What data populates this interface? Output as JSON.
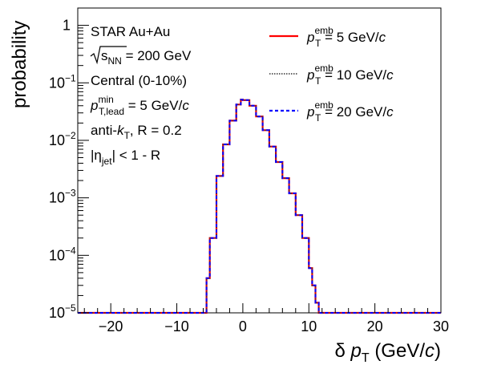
{
  "chart_data": {
    "type": "line",
    "xlabel": {
      "symbol": "δ",
      "var": "p",
      "sub": "T",
      "unit_pre": "(GeV/",
      "unit_it": "c",
      "unit_post": ")"
    },
    "ylabel": "probability",
    "xlim": [
      -25,
      30
    ],
    "ylim": [
      1e-05,
      2
    ],
    "y_scale": "log",
    "grid": false,
    "x_ticks": [
      "−20",
      "−10",
      "0",
      "10",
      "20",
      "30"
    ],
    "y_ticks": [
      {
        "base": "10",
        "exp": "−5"
      },
      {
        "base": "10",
        "exp": "−4"
      },
      {
        "base": "10",
        "exp": "−3"
      },
      {
        "base": "10",
        "exp": "−2"
      },
      {
        "base": "10",
        "exp": "−1"
      },
      {
        "base": "1",
        "exp": ""
      }
    ],
    "annotations": {
      "line1": "STAR Au+Au",
      "line2": {
        "root": "s",
        "sub": "NN",
        "rest": " = 200 GeV"
      },
      "line3": "Central (0-10%)",
      "line4": {
        "p": "p",
        "sup": "min",
        "sub": "T,lead",
        "rest": " = 5 GeV/",
        "it": "c"
      },
      "line5": {
        "pre": "anti-",
        "k": "k",
        "sub": "T",
        "rest": ", R = 0.2"
      },
      "line6": {
        "bar": "|",
        "eta": "η",
        "sub": "jet",
        "rest": "| < 1 - R"
      }
    },
    "legend_position": "top-right",
    "series": [
      {
        "label": {
          "p": "p",
          "sup": "emb",
          "sub": "T",
          "rest": " = 5 GeV/",
          "it": "c"
        },
        "color": "#ff0000",
        "style": "solid",
        "x": [
          -5.5,
          -5,
          -4,
          -3,
          -2,
          -1,
          -0.3,
          0,
          1,
          2,
          3,
          4,
          5,
          6,
          7,
          8,
          9,
          10,
          10.5,
          11
        ],
        "y": [
          4e-05,
          0.0002,
          0.0024,
          0.0085,
          0.022,
          0.042,
          0.051,
          0.05,
          0.04,
          0.026,
          0.015,
          0.0078,
          0.0042,
          0.0022,
          0.0012,
          0.0005,
          0.0002,
          6e-05,
          3e-05,
          1.5e-05
        ]
      },
      {
        "label": {
          "p": "p",
          "sup": "emb",
          "sub": "T",
          "rest": " = 10 GeV/",
          "it": "c"
        },
        "color": "#333333",
        "style": "dotted",
        "x": [
          -5.5,
          -5,
          -4,
          -3,
          -2,
          -1,
          -0.3,
          0,
          1,
          2,
          3,
          4,
          5,
          6,
          7,
          8,
          9,
          10,
          10.5,
          11
        ],
        "y": [
          4e-05,
          0.0002,
          0.0024,
          0.0085,
          0.022,
          0.042,
          0.051,
          0.05,
          0.04,
          0.026,
          0.015,
          0.0078,
          0.0042,
          0.0022,
          0.0012,
          0.0005,
          0.0002,
          6e-05,
          3e-05,
          1.5e-05
        ]
      },
      {
        "label": {
          "p": "p",
          "sup": "emb",
          "sub": "T",
          "rest": " = 20 GeV/",
          "it": "c"
        },
        "color": "#0000ff",
        "style": "dashed",
        "x": [
          -5.5,
          -5,
          -4,
          -3,
          -2,
          -1,
          -0.3,
          0,
          1,
          2,
          3,
          4,
          5,
          6,
          7,
          8,
          9,
          10,
          10.5,
          11
        ],
        "y": [
          4e-05,
          0.0002,
          0.0024,
          0.0085,
          0.022,
          0.042,
          0.051,
          0.05,
          0.04,
          0.026,
          0.015,
          0.0078,
          0.0042,
          0.0022,
          0.0012,
          0.0005,
          0.0002,
          6e-05,
          3e-05,
          1.5e-05
        ]
      }
    ]
  }
}
